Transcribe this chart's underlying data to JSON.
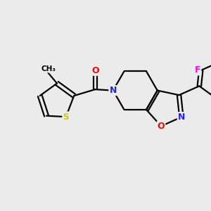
{
  "background_color": "#ebebeb",
  "bond_color": "#000000",
  "atom_colors": {
    "N": "#2222ff",
    "O": "#ff0000",
    "S": "#cccc00",
    "F": "#ff00ff",
    "C": "#000000"
  },
  "figsize": [
    3.0,
    3.0
  ],
  "dpi": 100
}
